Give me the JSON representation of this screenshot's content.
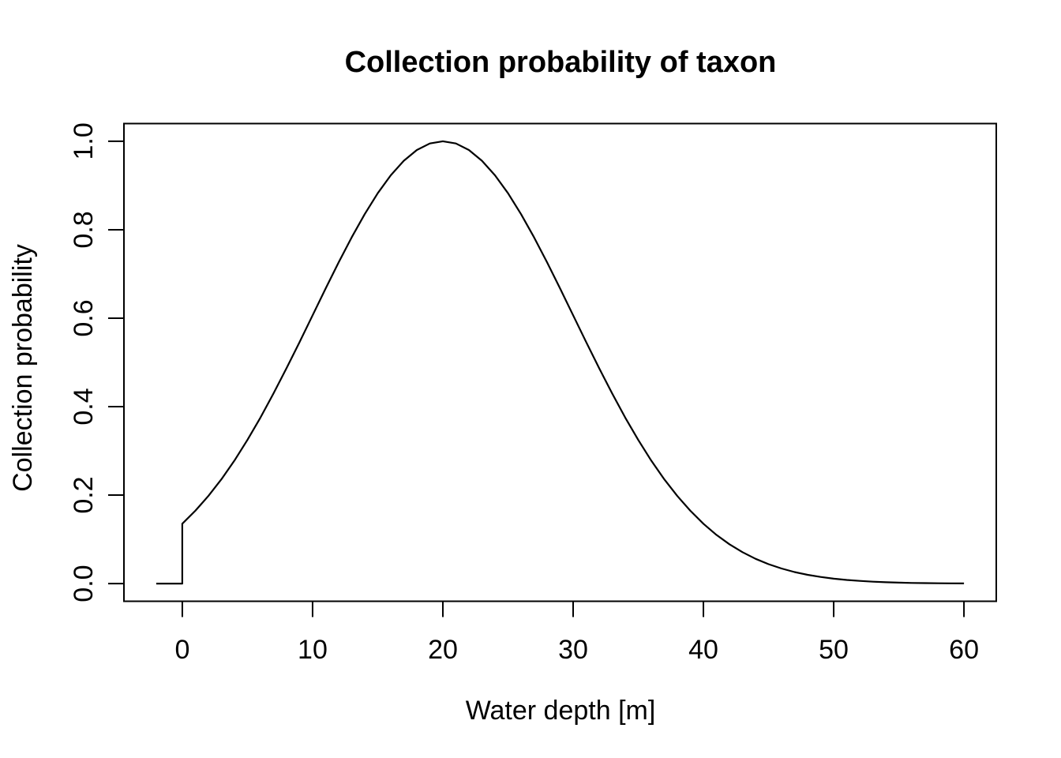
{
  "title": "Collection probability of taxon",
  "axes": {
    "x": {
      "label": "Water depth [m]",
      "tick_labels": [
        "0",
        "10",
        "20",
        "30",
        "40",
        "50",
        "60"
      ]
    },
    "y": {
      "label": "Collection probability",
      "tick_labels": [
        "0.0",
        "0.2",
        "0.4",
        "0.6",
        "0.8",
        "1.0"
      ]
    }
  },
  "colors": {
    "line": "#000000",
    "axis": "#000000",
    "text": "#000000",
    "background": "#ffffff"
  },
  "chart_data": {
    "type": "line",
    "title": "Collection probability of taxon",
    "xlabel": "Water depth [m]",
    "ylabel": "Collection probability",
    "xlim": [
      -4.48,
      62.48
    ],
    "ylim": [
      -0.04,
      1.04
    ],
    "x_ticks": [
      0,
      10,
      20,
      30,
      40,
      50,
      60
    ],
    "y_ticks": [
      0.0,
      0.2,
      0.4,
      0.6,
      0.8,
      1.0
    ],
    "grid": false,
    "legend": "none",
    "shape_note": "zero for x<0 with vertical step at x=0 up to 0.135, then bell curve (mean 20, sd 10) peaking at 1.0",
    "x": [
      -2,
      0,
      0,
      1,
      2,
      3,
      4,
      5,
      6,
      7,
      8,
      9,
      10,
      11,
      12,
      13,
      14,
      15,
      16,
      17,
      18,
      19,
      20,
      21,
      22,
      23,
      24,
      25,
      26,
      27,
      28,
      29,
      30,
      31,
      32,
      33,
      34,
      35,
      36,
      37,
      38,
      39,
      40,
      41,
      42,
      43,
      44,
      45,
      46,
      47,
      48,
      49,
      50,
      51,
      52,
      53,
      54,
      55,
      56,
      57,
      58,
      59,
      60
    ],
    "y": [
      0,
      0,
      0.1353,
      0.1645,
      0.1979,
      0.2357,
      0.278,
      0.3247,
      0.3753,
      0.4296,
      0.4868,
      0.5461,
      0.6065,
      0.667,
      0.7261,
      0.7827,
      0.8353,
      0.8825,
      0.9231,
      0.956,
      0.9802,
      0.995,
      1.0,
      0.995,
      0.9802,
      0.956,
      0.9231,
      0.8825,
      0.8353,
      0.7827,
      0.7261,
      0.667,
      0.6065,
      0.5461,
      0.4868,
      0.4296,
      0.3753,
      0.3247,
      0.278,
      0.2357,
      0.1979,
      0.1645,
      0.1353,
      0.1102,
      0.0889,
      0.071,
      0.0561,
      0.0439,
      0.034,
      0.0261,
      0.0198,
      0.0149,
      0.0111,
      0.0082,
      0.006,
      0.0043,
      0.0031,
      0.0022,
      0.0015,
      0.0011,
      0.0007,
      0.0005,
      0.0003
    ]
  }
}
